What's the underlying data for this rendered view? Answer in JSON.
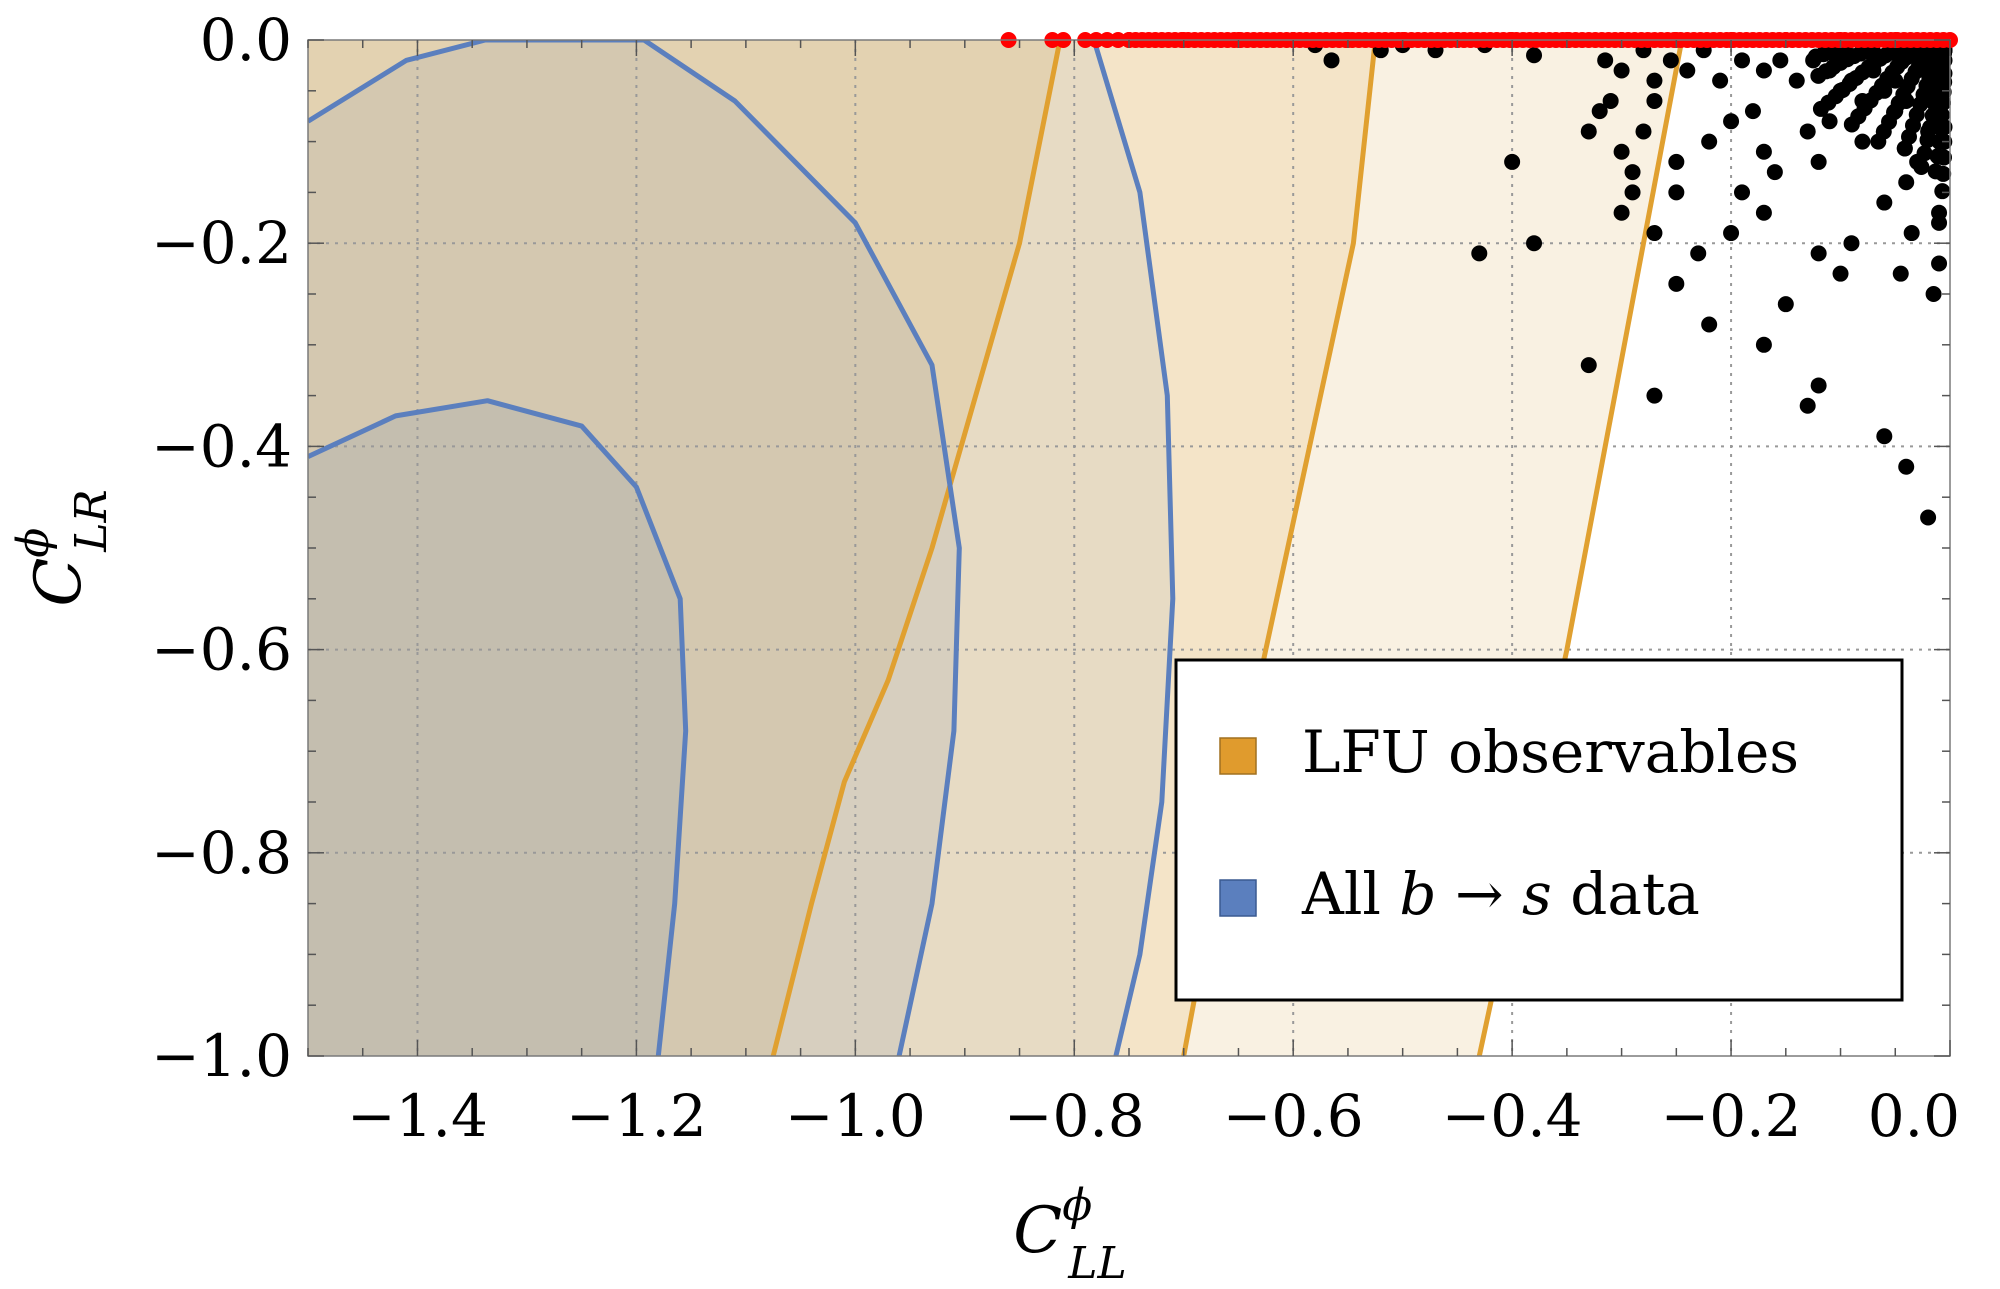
{
  "chart_data": {
    "type": "scatter",
    "title": "",
    "xlabel": {
      "main": "C",
      "superscript": "ϕ",
      "subscript": "LL"
    },
    "ylabel": {
      "main": "C",
      "superscript": "ϕ",
      "subscript": "LR"
    },
    "xlim": [
      -1.5,
      0.0
    ],
    "ylim": [
      -1.0,
      0.0
    ],
    "xticks": [
      -1.4,
      -1.2,
      -1.0,
      -0.8,
      -0.6,
      -0.4,
      -0.2,
      0.0
    ],
    "yticks": [
      0.0,
      -0.2,
      -0.4,
      -0.6,
      -0.8,
      -1.0
    ],
    "xtick_labels": [
      "−1.4",
      "−1.2",
      "−1.0",
      "−0.8",
      "−0.6",
      "−0.4",
      "−0.2",
      "0.0"
    ],
    "ytick_labels": [
      "0.0",
      "−0.2",
      "−0.4",
      "−0.6",
      "−0.8",
      "−1.0"
    ],
    "grid": true,
    "legend_position": "bottom-right",
    "legend": [
      {
        "label": "LFU observables",
        "color": "#E09B2D"
      },
      {
        "label_parts": [
          "All ",
          "b",
          " → ",
          "s",
          " data"
        ],
        "color": "#5B7FBE"
      }
    ],
    "colors": {
      "lfu_line": "#E0A030",
      "lfu_fill": "#E8C88A",
      "all_line": "#5B7FBE",
      "all_fill": "#8E9AAE",
      "scan_points": "#000000",
      "boundary_points": "#FF0000"
    },
    "contours": {
      "lfu_1sigma": {
        "left": [
          [
            -0.813,
            0.0
          ],
          [
            -0.85,
            -0.2
          ],
          [
            -0.89,
            -0.35
          ],
          [
            -0.93,
            -0.5
          ],
          [
            -0.97,
            -0.63
          ],
          [
            -1.01,
            -0.73
          ],
          [
            -1.04,
            -0.85
          ],
          [
            -1.075,
            -1.0
          ]
        ],
        "right": [
          [
            -0.525,
            0.0
          ],
          [
            -0.545,
            -0.2
          ],
          [
            -0.585,
            -0.4
          ],
          [
            -0.625,
            -0.6
          ],
          [
            -0.665,
            -0.8
          ],
          [
            -0.7,
            -1.0
          ]
        ]
      },
      "lfu_2sigma": {
        "right": [
          [
            -0.245,
            0.0
          ],
          [
            -0.28,
            -0.2
          ],
          [
            -0.315,
            -0.4
          ],
          [
            -0.35,
            -0.6
          ],
          [
            -0.39,
            -0.8
          ],
          [
            -0.43,
            -1.0
          ]
        ]
      },
      "all_1sigma": [
        [
          -1.5,
          -0.41
        ],
        [
          -1.42,
          -0.37
        ],
        [
          -1.336,
          -0.355
        ],
        [
          -1.25,
          -0.38
        ],
        [
          -1.2,
          -0.44
        ],
        [
          -1.16,
          -0.55
        ],
        [
          -1.155,
          -0.68
        ],
        [
          -1.165,
          -0.85
        ],
        [
          -1.18,
          -1.0
        ]
      ],
      "all_2sigma": [
        [
          -1.5,
          -0.08
        ],
        [
          -1.41,
          -0.02
        ],
        [
          -1.338,
          0.0
        ],
        [
          -1.193,
          0.0
        ],
        [
          -1.11,
          -0.06
        ],
        [
          -1.0,
          -0.18
        ],
        [
          -0.93,
          -0.32
        ],
        [
          -0.905,
          -0.5
        ],
        [
          -0.91,
          -0.68
        ],
        [
          -0.93,
          -0.85
        ],
        [
          -0.96,
          -1.0
        ]
      ],
      "all_3sigma_right": [
        [
          -0.782,
          0.0
        ],
        [
          -0.74,
          -0.15
        ],
        [
          -0.715,
          -0.35
        ],
        [
          -0.71,
          -0.55
        ],
        [
          -0.72,
          -0.75
        ],
        [
          -0.74,
          -0.9
        ],
        [
          -0.762,
          -1.0
        ]
      ]
    },
    "series": [
      {
        "name": "",
        "marker": "black-dots",
        "x": [
          -0.58,
          -0.565,
          -0.52,
          -0.5,
          -0.47,
          -0.425,
          -0.38,
          -0.315,
          -0.3,
          -0.28,
          -0.27,
          -0.255,
          -0.24,
          -0.225,
          -0.21,
          -0.19,
          -0.17,
          -0.155,
          -0.14,
          -0.125,
          -0.11,
          -0.1,
          -0.09,
          -0.08,
          -0.07,
          -0.06,
          -0.05,
          -0.04,
          -0.03,
          -0.02,
          -0.01,
          -0.005,
          -0.4,
          -0.31,
          -0.33,
          -0.32,
          -0.3,
          -0.29,
          -0.28,
          -0.27,
          -0.25,
          -0.25,
          -0.22,
          -0.2,
          -0.18,
          -0.17,
          -0.16,
          -0.13,
          -0.12,
          -0.11,
          -0.08,
          -0.05,
          -0.04,
          -0.03,
          -0.02,
          -0.01,
          -0.01,
          -0.01,
          -0.015,
          -0.035,
          -0.045,
          -0.06,
          -0.09,
          -0.1,
          -0.12,
          -0.17,
          -0.19,
          -0.2,
          -0.23,
          -0.25,
          -0.27,
          -0.29,
          -0.3,
          -0.33,
          -0.38,
          -0.43,
          -0.27,
          -0.22,
          -0.17,
          -0.12,
          -0.06,
          -0.02,
          -0.04,
          -0.13,
          -0.15
        ],
        "y": [
          -0.005,
          -0.02,
          -0.01,
          -0.005,
          -0.01,
          -0.005,
          -0.015,
          -0.02,
          -0.03,
          -0.01,
          -0.04,
          -0.02,
          -0.03,
          -0.01,
          -0.04,
          -0.02,
          -0.03,
          -0.02,
          -0.04,
          -0.02,
          -0.03,
          -0.05,
          -0.04,
          -0.06,
          -0.03,
          -0.05,
          -0.04,
          -0.06,
          -0.03,
          -0.05,
          -0.04,
          -0.02,
          -0.12,
          -0.06,
          -0.09,
          -0.07,
          -0.11,
          -0.13,
          -0.09,
          -0.06,
          -0.12,
          -0.15,
          -0.1,
          -0.08,
          -0.07,
          -0.11,
          -0.13,
          -0.09,
          -0.12,
          -0.08,
          -0.1,
          -0.07,
          -0.14,
          -0.12,
          -0.09,
          -0.17,
          -0.22,
          -0.18,
          -0.25,
          -0.19,
          -0.23,
          -0.16,
          -0.2,
          -0.23,
          -0.21,
          -0.17,
          -0.15,
          -0.19,
          -0.21,
          -0.24,
          -0.19,
          -0.15,
          -0.17,
          -0.32,
          -0.2,
          -0.21,
          -0.35,
          -0.28,
          -0.3,
          -0.34,
          -0.39,
          -0.47,
          -0.42,
          -0.36,
          -0.26
        ]
      },
      {
        "name": "",
        "marker": "red-dots",
        "x": [
          -0.86,
          -0.82,
          -0.81,
          -0.79,
          -0.78,
          -0.77,
          -0.76,
          -0.75,
          -0.7,
          -0.65,
          -0.6,
          -0.55,
          -0.5,
          -0.45,
          -0.4,
          -0.35,
          -0.3,
          -0.25,
          -0.2,
          -0.15,
          -0.1,
          -0.05,
          0.0
        ],
        "y": [
          0.0,
          0.0,
          0.0,
          0.0,
          0.0,
          0.0,
          0.0,
          0.0,
          0.0,
          0.0,
          0.0,
          0.0,
          0.0,
          0.0,
          0.0,
          0.0,
          0.0,
          0.0,
          0.0,
          0.0,
          0.0,
          0.0,
          0.0
        ]
      }
    ]
  }
}
